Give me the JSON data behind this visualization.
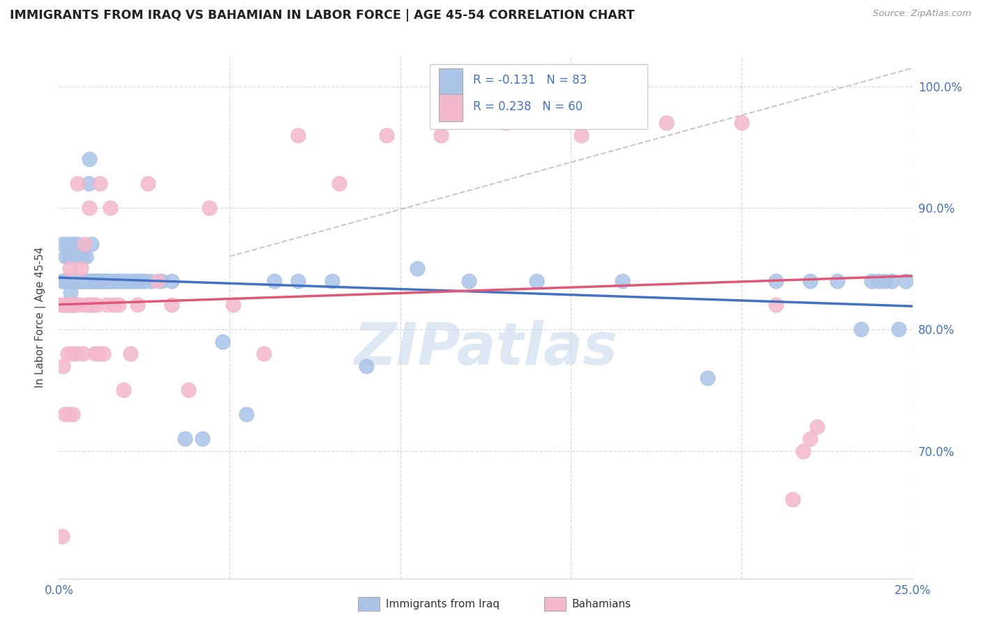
{
  "title": "IMMIGRANTS FROM IRAQ VS BAHAMIAN IN LABOR FORCE | AGE 45-54 CORRELATION CHART",
  "source": "Source: ZipAtlas.com",
  "ylabel": "In Labor Force | Age 45-54",
  "ytick_values": [
    0.7,
    0.8,
    0.9,
    1.0
  ],
  "ytick_labels": [
    "70.0%",
    "80.0%",
    "90.0%",
    "100.0%"
  ],
  "xrange": [
    0.0,
    0.25
  ],
  "yrange": [
    0.595,
    1.025
  ],
  "iraq_color": "#aac4e8",
  "bah_color": "#f4b8cc",
  "iraq_edge_color": "#aac4e8",
  "bah_edge_color": "#f4b8cc",
  "iraq_line_color": "#4472c4",
  "bah_line_color": "#e05878",
  "diag_line_color": "#c8c8c8",
  "background_color": "#ffffff",
  "grid_color": "#d8d8d8",
  "watermark": "ZIPatlas",
  "watermark_color": "#d0dff0",
  "legend_r_iraq": "R = -0.131",
  "legend_n_iraq": "N = 83",
  "legend_r_bah": "R = 0.238",
  "legend_n_bah": "N = 60",
  "iraq_points_x": [
    0.001,
    0.0012,
    0.0015,
    0.0018,
    0.002,
    0.0022,
    0.0025,
    0.0028,
    0.003,
    0.0032,
    0.0035,
    0.0038,
    0.004,
    0.0042,
    0.0045,
    0.0048,
    0.005,
    0.0052,
    0.0055,
    0.0058,
    0.006,
    0.0062,
    0.0065,
    0.0068,
    0.007,
    0.0072,
    0.0075,
    0.0078,
    0.008,
    0.0082,
    0.0085,
    0.0088,
    0.009,
    0.0092,
    0.0095,
    0.0098,
    0.01,
    0.0105,
    0.011,
    0.0115,
    0.012,
    0.0125,
    0.013,
    0.0135,
    0.014,
    0.0145,
    0.015,
    0.016,
    0.017,
    0.018,
    0.019,
    0.02,
    0.021,
    0.022,
    0.023,
    0.024,
    0.025,
    0.027,
    0.03,
    0.033,
    0.037,
    0.042,
    0.048,
    0.055,
    0.063,
    0.07,
    0.08,
    0.09,
    0.105,
    0.12,
    0.14,
    0.165,
    0.19,
    0.21,
    0.22,
    0.228,
    0.235,
    0.238,
    0.24,
    0.242,
    0.244,
    0.246,
    0.248
  ],
  "iraq_points_y": [
    0.84,
    0.87,
    0.84,
    0.84,
    0.86,
    0.84,
    0.87,
    0.84,
    0.86,
    0.84,
    0.83,
    0.86,
    0.84,
    0.87,
    0.84,
    0.86,
    0.84,
    0.84,
    0.87,
    0.84,
    0.86,
    0.84,
    0.84,
    0.86,
    0.84,
    0.84,
    0.84,
    0.86,
    0.84,
    0.84,
    0.84,
    0.92,
    0.94,
    0.84,
    0.87,
    0.84,
    0.84,
    0.84,
    0.84,
    0.84,
    0.84,
    0.84,
    0.84,
    0.84,
    0.84,
    0.84,
    0.84,
    0.84,
    0.84,
    0.84,
    0.84,
    0.84,
    0.84,
    0.84,
    0.84,
    0.84,
    0.84,
    0.84,
    0.84,
    0.84,
    0.71,
    0.71,
    0.79,
    0.73,
    0.84,
    0.84,
    0.84,
    0.77,
    0.85,
    0.84,
    0.84,
    0.84,
    0.76,
    0.84,
    0.84,
    0.84,
    0.8,
    0.84,
    0.84,
    0.84,
    0.84,
    0.8,
    0.84
  ],
  "bah_points_x": [
    0.0008,
    0.001,
    0.0012,
    0.0015,
    0.0018,
    0.002,
    0.0022,
    0.0025,
    0.0028,
    0.003,
    0.0032,
    0.0035,
    0.0038,
    0.004,
    0.0042,
    0.0045,
    0.0048,
    0.005,
    0.0055,
    0.006,
    0.0065,
    0.007,
    0.0075,
    0.008,
    0.0085,
    0.009,
    0.0095,
    0.01,
    0.0105,
    0.011,
    0.0115,
    0.012,
    0.013,
    0.014,
    0.015,
    0.016,
    0.0175,
    0.019,
    0.021,
    0.023,
    0.026,
    0.029,
    0.033,
    0.038,
    0.044,
    0.051,
    0.06,
    0.07,
    0.082,
    0.096,
    0.112,
    0.131,
    0.153,
    0.178,
    0.2,
    0.21,
    0.215,
    0.218,
    0.22,
    0.222
  ],
  "bah_points_y": [
    0.82,
    0.63,
    0.77,
    0.82,
    0.73,
    0.82,
    0.82,
    0.78,
    0.73,
    0.82,
    0.85,
    0.82,
    0.78,
    0.73,
    0.82,
    0.82,
    0.82,
    0.78,
    0.92,
    0.82,
    0.85,
    0.78,
    0.87,
    0.82,
    0.82,
    0.9,
    0.82,
    0.82,
    0.78,
    0.82,
    0.78,
    0.92,
    0.78,
    0.82,
    0.9,
    0.82,
    0.82,
    0.75,
    0.78,
    0.82,
    0.92,
    0.84,
    0.82,
    0.75,
    0.9,
    0.82,
    0.78,
    0.96,
    0.92,
    0.96,
    0.96,
    0.97,
    0.96,
    0.97,
    0.97,
    0.82,
    0.66,
    0.7,
    0.71,
    0.72
  ],
  "diag_line_x": [
    0.05,
    0.25
  ],
  "diag_line_y": [
    0.86,
    1.015
  ]
}
